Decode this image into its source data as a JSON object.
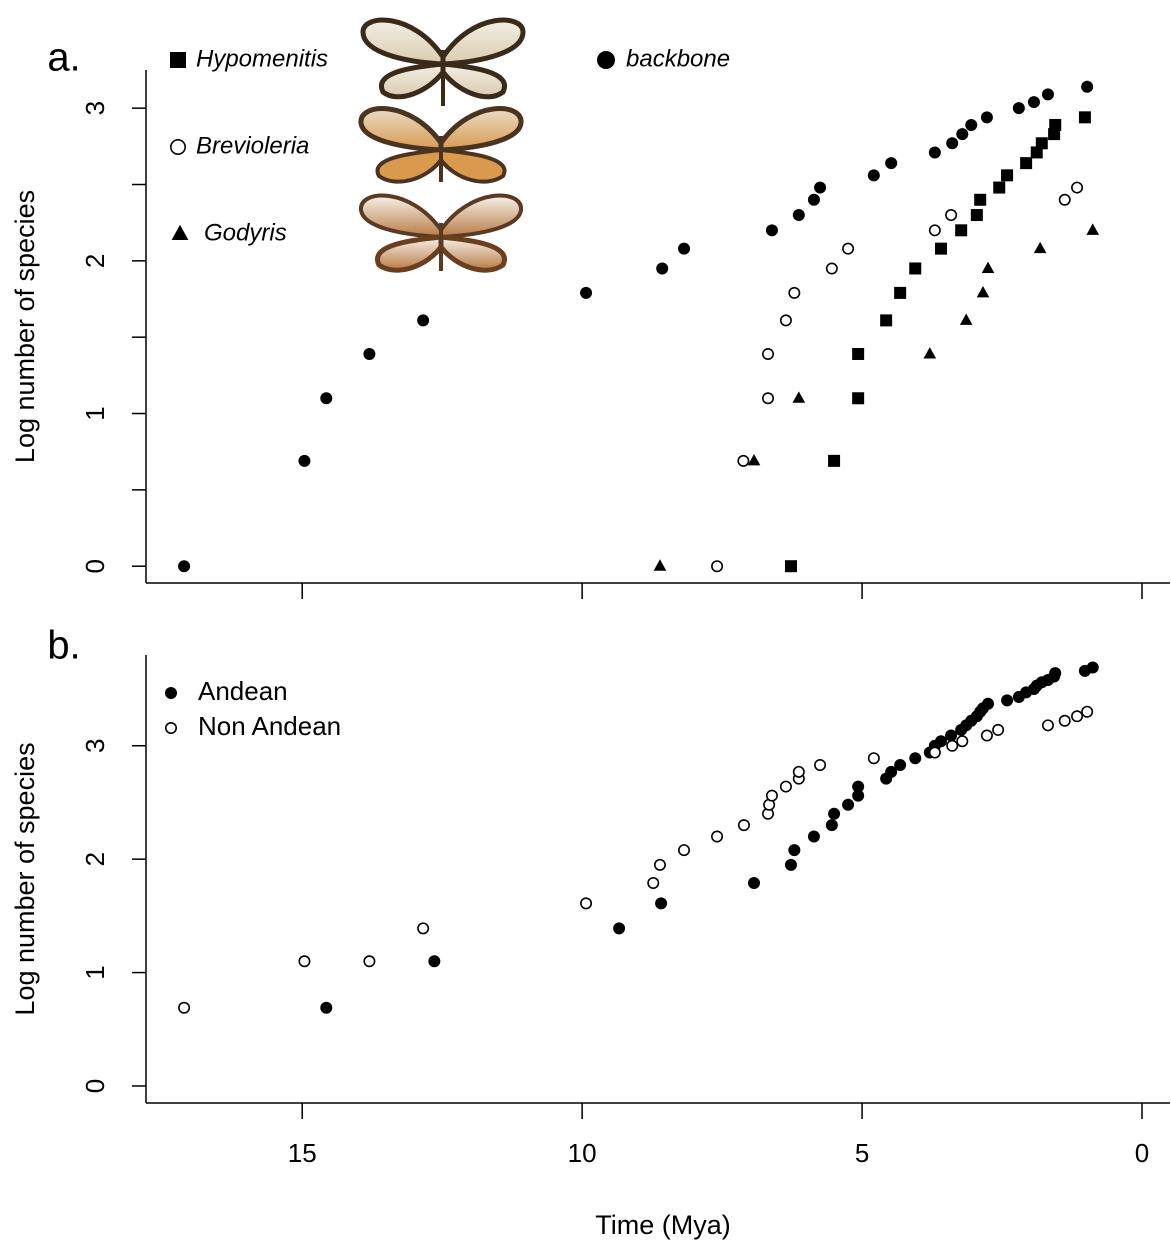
{
  "chart_data": [
    {
      "type": "scatter",
      "panel_label": "a.",
      "ylabel": "Log number of species",
      "xlim": [
        17.79,
        -0.5
      ],
      "ylim": [
        -0.11,
        3.25
      ],
      "xticks": [
        15,
        10,
        5,
        0
      ],
      "yticks": [
        0,
        1,
        2,
        3
      ],
      "yminor_ticks": [
        0.5,
        1.5,
        2.5
      ],
      "series": [
        {
          "name": "Hypomenitis",
          "marker": "square",
          "color": "#000000",
          "x": [
            6.27,
            5.5,
            5.07,
            5.07,
            4.57,
            4.32,
            4.05,
            3.59,
            3.23,
            2.95,
            2.89,
            2.55,
            2.41,
            2.07,
            1.88,
            1.79,
            1.57,
            1.55,
            1.02
          ],
          "values": [
            0,
            0.69,
            1.1,
            1.39,
            1.61,
            1.79,
            1.95,
            2.08,
            2.2,
            2.3,
            2.4,
            2.48,
            2.56,
            2.64,
            2.71,
            2.77,
            2.83,
            2.89,
            2.94
          ]
        },
        {
          "name": "Brevioleria",
          "marker": "circle-open",
          "color": "#000000",
          "x": [
            7.59,
            7.12,
            6.68,
            6.68,
            6.36,
            6.21,
            5.54,
            5.25,
            3.7,
            3.41,
            1.38,
            1.16
          ],
          "values": [
            0,
            0.69,
            1.1,
            1.39,
            1.61,
            1.79,
            1.95,
            2.08,
            2.2,
            2.3,
            2.4,
            2.48
          ]
        },
        {
          "name": "Godyris",
          "marker": "triangle",
          "color": "#000000",
          "x": [
            8.61,
            6.93,
            6.13,
            3.79,
            3.14,
            2.84,
            2.75,
            1.82,
            0.88
          ],
          "values": [
            0,
            0.69,
            1.1,
            1.39,
            1.61,
            1.79,
            1.95,
            2.08,
            2.2
          ]
        },
        {
          "name": "backbone",
          "marker": "circle",
          "color": "#000000",
          "x": [
            17.11,
            14.96,
            14.57,
            13.8,
            12.84,
            9.93,
            8.57,
            8.18,
            6.61,
            6.13,
            5.86,
            5.75,
            4.79,
            4.48,
            3.7,
            3.39,
            3.21,
            3.05,
            2.77,
            2.2,
            1.93,
            1.68,
            0.98
          ],
          "values": [
            0,
            0.69,
            1.1,
            1.39,
            1.61,
            1.79,
            1.95,
            2.08,
            2.2,
            2.3,
            2.4,
            2.48,
            2.56,
            2.64,
            2.71,
            2.77,
            2.83,
            2.89,
            2.94,
            3.0,
            3.04,
            3.09,
            3.14
          ]
        }
      ]
    },
    {
      "type": "scatter",
      "panel_label": "b.",
      "ylabel": "Log number of species",
      "xlabel": "Time (Mya)",
      "xlim": [
        17.79,
        -0.5
      ],
      "ylim": [
        -0.15,
        3.8
      ],
      "xticks": [
        15,
        10,
        5,
        0
      ],
      "yticks": [
        0,
        1,
        2,
        3
      ],
      "series": [
        {
          "name": "Andean",
          "marker": "circle",
          "color": "#000000",
          "x": [
            14.57,
            12.64,
            9.34,
            8.59,
            6.93,
            6.27,
            6.21,
            5.86,
            5.54,
            5.5,
            5.25,
            5.07,
            5.07,
            4.57,
            4.48,
            4.32,
            4.05,
            3.79,
            3.7,
            3.59,
            3.41,
            3.23,
            3.14,
            3.05,
            2.95,
            2.89,
            2.84,
            2.75,
            2.41,
            2.2,
            2.07,
            1.93,
            1.88,
            1.79,
            1.68,
            1.57,
            1.55,
            1.02,
            0.88
          ],
          "values": [
            0.69,
            1.1,
            1.39,
            1.61,
            1.79,
            1.95,
            2.08,
            2.2,
            2.3,
            2.4,
            2.48,
            2.56,
            2.64,
            2.71,
            2.77,
            2.83,
            2.89,
            2.94,
            3.0,
            3.04,
            3.09,
            3.14,
            3.18,
            3.22,
            3.26,
            3.3,
            3.33,
            3.37,
            3.4,
            3.43,
            3.47,
            3.5,
            3.53,
            3.56,
            3.58,
            3.61,
            3.64,
            3.66,
            3.69
          ]
        },
        {
          "name": "Non Andean",
          "marker": "circle-open",
          "color": "#000000",
          "x": [
            17.11,
            14.96,
            13.8,
            12.84,
            9.93,
            8.73,
            8.61,
            8.18,
            7.59,
            7.11,
            6.68,
            6.66,
            6.61,
            6.36,
            6.13,
            6.13,
            5.75,
            4.79,
            3.7,
            3.39,
            3.21,
            2.77,
            2.57,
            1.68,
            1.38,
            1.16,
            0.98
          ],
          "values": [
            0.69,
            1.1,
            1.1,
            1.39,
            1.61,
            1.79,
            1.95,
            2.08,
            2.2,
            2.3,
            2.4,
            2.48,
            2.56,
            2.64,
            2.71,
            2.77,
            2.83,
            2.89,
            2.94,
            3.0,
            3.04,
            3.09,
            3.14,
            3.18,
            3.22,
            3.26,
            3.3
          ]
        }
      ]
    }
  ]
}
